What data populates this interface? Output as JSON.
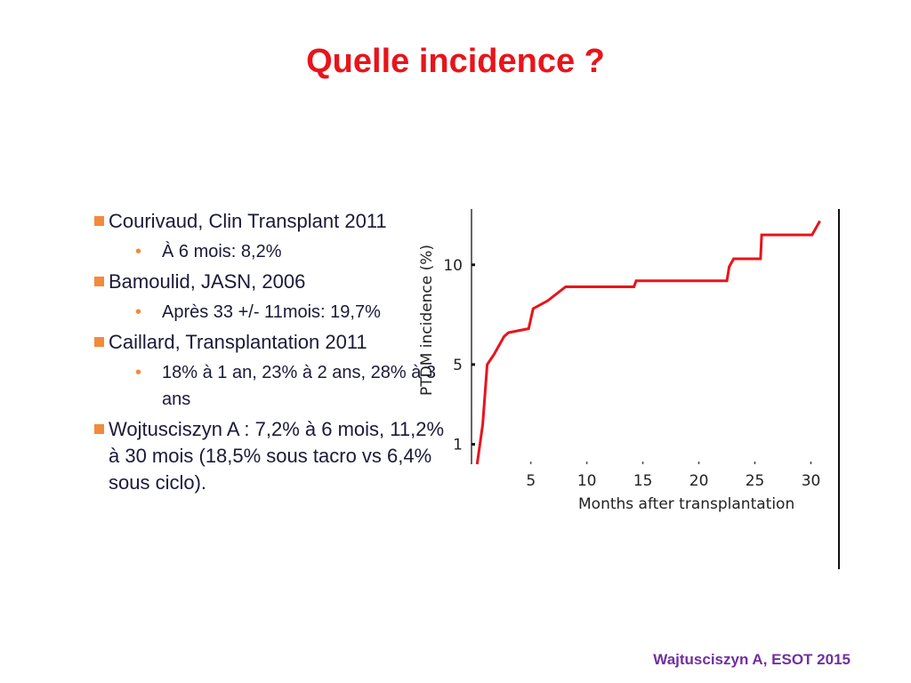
{
  "title": "Quelle incidence ?",
  "bullets": [
    {
      "text": "Courivaud, Clin Transplant 2011",
      "sub": [
        "À 6 mois: 8,2%"
      ]
    },
    {
      "text": "Bamoulid, JASN, 2006",
      "sub": [
        "Après 33 +/- 11mois: 19,7%"
      ]
    },
    {
      "text": "Caillard, Transplantation 2011",
      "sub": [
        "18% à 1 an, 23% à 2 ans, 28% à 3 ans"
      ]
    },
    {
      "text": "Wojtusciszyn A : 7,2% à 6 mois, 11,2% à 30 mois (18,5% sous tacro vs 6,4% sous ciclo).",
      "sub": []
    }
  ],
  "footer": "Wajtusciszyn A, ESOT 2015",
  "chart_data": {
    "type": "line",
    "x_label": "Months after transplantation",
    "y_label": "PTDM incidence (%)",
    "x": [
      0.2,
      0.7,
      1.1,
      1.7,
      2.6,
      3,
      4.8,
      5.2,
      6.5,
      8.1,
      14.2,
      14.4,
      22.5,
      22.7,
      23.1,
      25.5,
      25.6,
      30.1,
      30.8
    ],
    "series": [
      {
        "color": "#e8141b",
        "values": [
          0,
          2,
          5,
          5.5,
          6.4,
          6.6,
          6.8,
          7.8,
          8.2,
          8.9,
          8.9,
          9.2,
          9.2,
          9.9,
          10.3,
          10.3,
          11.5,
          11.5,
          12.2
        ]
      }
    ],
    "xlim": [
      -0.3,
      32.5
    ],
    "ylim": [
      0,
      12.8
    ],
    "xticks": [
      5,
      10,
      15,
      20,
      25,
      30
    ],
    "yticks": [
      1,
      5,
      10
    ]
  }
}
